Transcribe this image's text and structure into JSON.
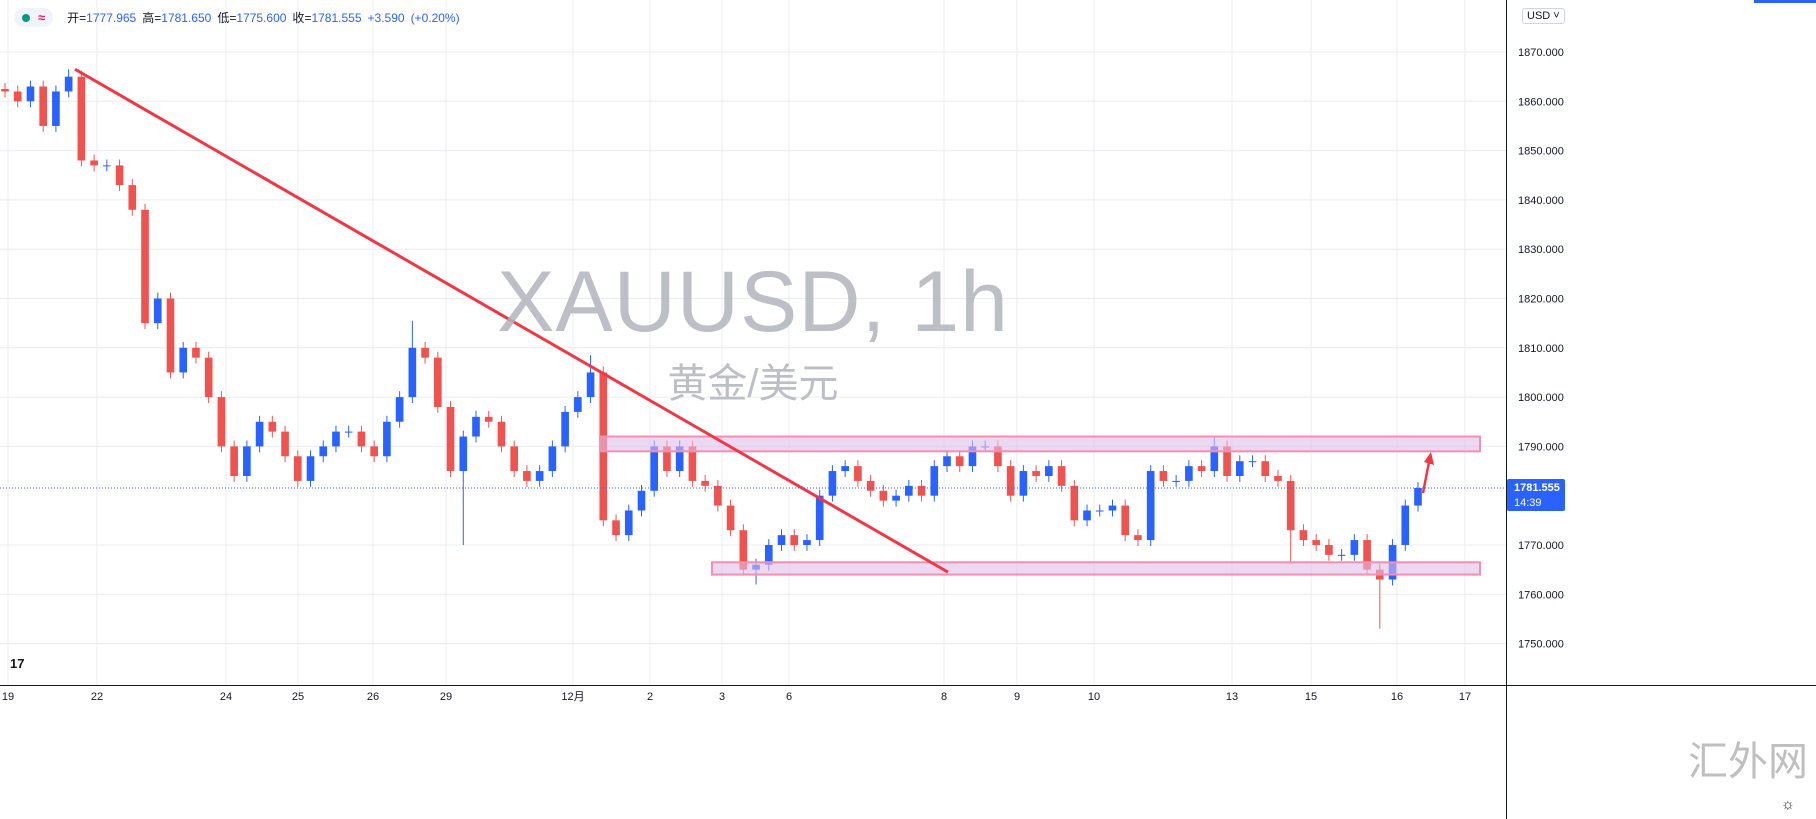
{
  "header": {
    "open_label": "开",
    "open": "1777.965",
    "high_label": "高",
    "high": "1781.650",
    "low_label": "低",
    "low": "1775.600",
    "close_label": "收",
    "close": "1781.555",
    "change": "+3.590",
    "change_pct": "(+0.20%)"
  },
  "currency": "USD ˅",
  "watermark": {
    "symbol": "XAUUSD, 1h",
    "name": "黄金/美元"
  },
  "site_watermark": "汇外网",
  "last_price": {
    "value": "1781.555",
    "countdown": "14:39"
  },
  "colors": {
    "up": "#2962ff",
    "down": "#ef5350",
    "trendline": "#f23645",
    "zone": "#e1bee7",
    "zone_border": "#f48fb1",
    "label_bg": "#2962ff"
  },
  "chart_data": {
    "type": "candlestick",
    "symbol": "XAUUSD",
    "timeframe": "1h",
    "ylim": [
      1745,
      1877
    ],
    "y_ticks": [
      "1870.000",
      "1860.000",
      "1850.000",
      "1840.000",
      "1830.000",
      "1820.000",
      "1810.000",
      "1800.000",
      "1790.000",
      "1770.000",
      "1760.000",
      "1750.000"
    ],
    "x_ticks": [
      "19",
      "22",
      "24",
      "25",
      "26",
      "29",
      "12月",
      "2",
      "3",
      "6",
      "8",
      "9",
      "10",
      "13",
      "15",
      "16",
      "17"
    ],
    "grid": true,
    "closes": [
      1862,
      1860,
      1863,
      1855,
      1862,
      1865,
      1848,
      1847,
      1847,
      1843,
      1838,
      1815,
      1820,
      1805,
      1810,
      1808,
      1800,
      1790,
      1784,
      1790,
      1795,
      1793,
      1788,
      1783,
      1788,
      1790,
      1793,
      1793,
      1790,
      1788,
      1795,
      1800,
      1810,
      1808,
      1798,
      1785,
      1792,
      1796,
      1795,
      1790,
      1785,
      1783,
      1785,
      1790,
      1797,
      1800,
      1805,
      1775,
      1772,
      1777,
      1781,
      1790,
      1785,
      1790,
      1783,
      1782,
      1778,
      1773,
      1765,
      1766,
      1770,
      1772,
      1770,
      1771,
      1780,
      1785,
      1786,
      1783,
      1781,
      1779,
      1780,
      1782,
      1780,
      1786,
      1788,
      1786,
      1790,
      1790,
      1786,
      1780,
      1785,
      1784,
      1786,
      1782,
      1775,
      1777,
      1777,
      1778,
      1772,
      1771,
      1785,
      1783,
      1783,
      1786,
      1785,
      1790,
      1784,
      1787,
      1787,
      1784,
      1783,
      1773,
      1771,
      1770,
      1768,
      1768,
      1771,
      1765,
      1763,
      1770,
      1778,
      1781.555
    ],
    "extreme_wicks": [
      {
        "bar": 5,
        "high": 1866.5
      },
      {
        "bar": 32,
        "high": 1815.5
      },
      {
        "bar": 36,
        "low": 1770
      },
      {
        "bar": 46,
        "high": 1808.5
      },
      {
        "bar": 59,
        "low": 1762
      },
      {
        "bar": 95,
        "high": 1792
      },
      {
        "bar": 101,
        "low": 1766.5
      },
      {
        "bar": 108,
        "low": 1753
      }
    ],
    "drawings": {
      "trendline": {
        "from": 1866.5,
        "to": 1764.5
      },
      "resistance_zone": [
        1789,
        1792
      ],
      "support_zone": [
        1764,
        1766.5
      ],
      "arrow": "up"
    },
    "last_price": 1781.555
  }
}
